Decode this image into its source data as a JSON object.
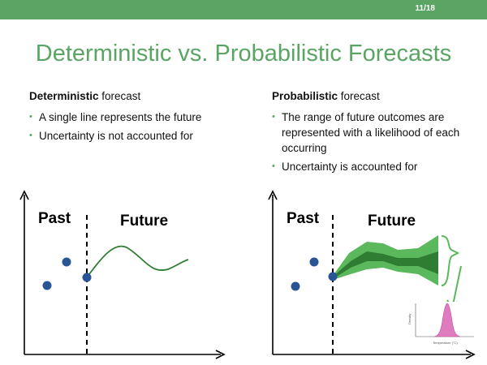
{
  "slide": {
    "number": "11/18",
    "title": "Deterministic vs. Probabilistic Forecasts"
  },
  "left": {
    "heading_bold": "Deterministic",
    "heading_rest": " forecast",
    "bullets": [
      "A single line represents the future",
      "Uncertainty is not accounted for"
    ],
    "past_label": "Past",
    "future_label": "Future"
  },
  "right": {
    "heading_bold": "Probabilistic",
    "heading_rest": " forecast",
    "bullets": [
      "The range of future outcomes are represented with a likelihood of each occurring",
      "Uncertainty is accounted for"
    ],
    "past_label": "Past",
    "future_label": "Future"
  },
  "inset": {
    "xlabel": "Temperature (°C)",
    "ylabel": "Density"
  },
  "colors": {
    "accent_green": "#5aa564",
    "line_green": "#2e7d32",
    "band_light": "#5cb85c",
    "band_dark": "#2e7d32",
    "dot_blue": "#2a5595",
    "density_pink": "#e07bbf"
  }
}
